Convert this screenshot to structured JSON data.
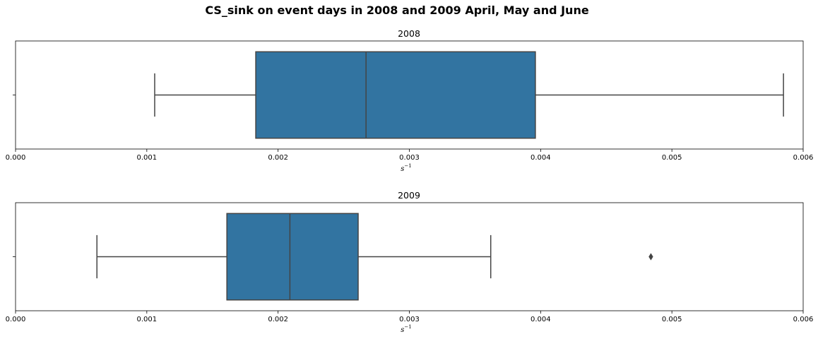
{
  "figure": {
    "title": "CS_sink on event days in 2008 and 2009 April, May and June"
  },
  "chart_data": [
    {
      "type": "boxplot",
      "title": "2008",
      "xlabel_base": "s",
      "xlabel_exponent": "−1",
      "xlim": [
        0,
        0.006
      ],
      "xticks": [
        "0.000",
        "0.001",
        "0.002",
        "0.003",
        "0.004",
        "0.005",
        "0.006"
      ],
      "box": {
        "whisker_low": 0.00106,
        "q1": 0.00183,
        "median": 0.00267,
        "q3": 0.00396,
        "whisker_high": 0.00585,
        "outliers": []
      },
      "color": "#3274a1"
    },
    {
      "type": "boxplot",
      "title": "2009",
      "xlabel_base": "s",
      "xlabel_exponent": "−1",
      "xlim": [
        0,
        0.006
      ],
      "xticks": [
        "0.000",
        "0.001",
        "0.002",
        "0.003",
        "0.004",
        "0.005",
        "0.006"
      ],
      "box": {
        "whisker_low": 0.00062,
        "q1": 0.00161,
        "median": 0.00209,
        "q3": 0.00261,
        "whisker_high": 0.00362,
        "outliers": [
          0.00484
        ]
      },
      "color": "#3274a1"
    }
  ]
}
